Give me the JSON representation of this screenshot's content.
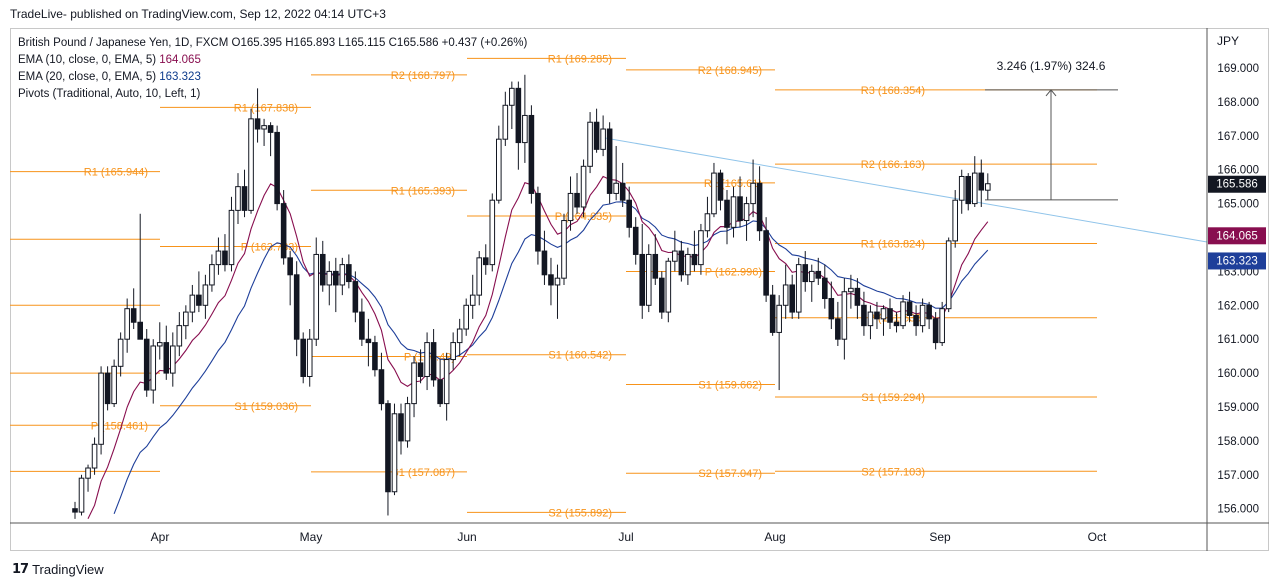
{
  "header": {
    "text": "TradeLive- published on TradingView.com, Sep 12, 2022 04:14 UTC+3"
  },
  "legend": {
    "symbol": "British Pound / Japanese Yen, 1D, FXCM",
    "ohlc": "O165.395 H165.893 L165.115 C165.586 +0.437 (+0.26%)",
    "ema10_label": "EMA (10, close, 0, EMA, 5)",
    "ema10_value": "164.065",
    "ema20_label": "EMA (20, close, 0, EMA, 5)",
    "ema20_value": "163.323",
    "pivots_label": "Pivots (Traditional, Auto, 10, Left, 1)"
  },
  "footer": {
    "brand": "TradingView"
  },
  "colors": {
    "pivot": "#f7931a",
    "ema10": "#880e4f",
    "ema20": "#1e3f9a",
    "trendline": "#90c4ea",
    "candle": "#131722",
    "price_badge": "#131722"
  },
  "chart_data": {
    "type": "candlestick",
    "title": "British Pound / Japanese Yen, 1D, FXCM",
    "currency": "JPY",
    "x_ticks": [
      "Apr",
      "May",
      "Jun",
      "Jul",
      "Aug",
      "Sep",
      "Oct"
    ],
    "y_ticks": [
      "156.000",
      "157.000",
      "158.000",
      "159.000",
      "160.000",
      "161.000",
      "162.000",
      "163.000",
      "164.000",
      "165.000",
      "166.000",
      "167.000",
      "168.000",
      "169.000"
    ],
    "ylim": [
      155.6,
      170.0
    ],
    "last_price": "165.586",
    "ema10_last": "164.065",
    "ema20_last": "163.323",
    "measure_label": "3.246 (1.97%) 324.6",
    "grid": false,
    "pivot_periods": [
      {
        "levels": [
          {
            "label": "",
            "value": 163.95
          },
          {
            "label": "R1 (165.944)",
            "value": 165.944
          },
          {
            "label": "",
            "value": 162.0
          },
          {
            "label": "P (158.461)",
            "value": 158.461
          },
          {
            "label": "",
            "value": 160.0
          },
          {
            "label": "",
            "value": 157.1
          }
        ]
      },
      {
        "levels": [
          {
            "label": "R1 (167.838)",
            "value": 167.838
          },
          {
            "label": "P (163.733)",
            "value": 163.733
          },
          {
            "label": "S1 (159.036)",
            "value": 159.036
          }
        ]
      },
      {
        "levels": [
          {
            "label": "R2 (168.797)",
            "value": 168.797
          },
          {
            "label": "R1 (165.393)",
            "value": 165.393
          },
          {
            "label": "P (160.49)",
            "value": 160.49
          },
          {
            "label": "S1 (157.087)",
            "value": 157.087
          }
        ]
      },
      {
        "levels": [
          {
            "label": "R1 (169.285)",
            "value": 169.285
          },
          {
            "label": "P (164.635)",
            "value": 164.635
          },
          {
            "label": "S1 (160.542)",
            "value": 160.542
          },
          {
            "label": "S2 (155.892)",
            "value": 155.892
          }
        ]
      },
      {
        "levels": [
          {
            "label": "R2 (168.945)",
            "value": 168.945
          },
          {
            "label": "R1 (165.61)",
            "value": 165.61
          },
          {
            "label": "P (162.996)",
            "value": 162.996
          },
          {
            "label": "S1 (159.662)",
            "value": 159.662
          },
          {
            "label": "S2 (157.047)",
            "value": 157.047
          }
        ]
      },
      {
        "levels": [
          {
            "label": "R3 (168.354)",
            "value": 168.354
          },
          {
            "label": "R2 (166.163)",
            "value": 166.163
          },
          {
            "label": "R1 (163.824)",
            "value": 163.824
          },
          {
            "label": "P (161.633)",
            "value": 161.633
          },
          {
            "label": "S1 (159.294)",
            "value": 159.294
          },
          {
            "label": "S2 (157.103)",
            "value": 157.103
          }
        ]
      }
    ],
    "candles": [
      [
        156.0,
        156.2,
        155.7,
        155.9
      ],
      [
        155.9,
        157.0,
        155.8,
        156.9
      ],
      [
        156.9,
        157.3,
        156.5,
        157.2
      ],
      [
        157.2,
        158.1,
        157.0,
        157.9
      ],
      [
        157.9,
        160.2,
        157.6,
        160.0
      ],
      [
        160.0,
        160.2,
        158.9,
        159.1
      ],
      [
        159.1,
        160.4,
        159.0,
        160.2
      ],
      [
        160.2,
        161.2,
        159.9,
        161.0
      ],
      [
        161.0,
        162.2,
        160.6,
        161.9
      ],
      [
        161.9,
        162.5,
        161.3,
        161.5
      ],
      [
        161.5,
        164.7,
        161.0,
        161.0
      ],
      [
        161.0,
        161.3,
        159.3,
        159.5
      ],
      [
        159.5,
        161.0,
        159.1,
        160.8
      ],
      [
        160.8,
        161.5,
        160.4,
        160.9
      ],
      [
        160.9,
        161.4,
        159.8,
        160.0
      ],
      [
        160.0,
        161.2,
        159.6,
        160.8
      ],
      [
        160.8,
        161.8,
        160.5,
        161.4
      ],
      [
        161.4,
        162.0,
        161.0,
        161.8
      ],
      [
        161.8,
        162.6,
        161.5,
        162.3
      ],
      [
        162.3,
        163.0,
        161.8,
        162.0
      ],
      [
        162.0,
        162.9,
        161.6,
        162.6
      ],
      [
        162.6,
        163.5,
        162.4,
        163.2
      ],
      [
        163.2,
        164.0,
        162.9,
        163.6
      ],
      [
        163.6,
        164.1,
        163.0,
        163.2
      ],
      [
        163.2,
        165.2,
        163.0,
        164.8
      ],
      [
        164.8,
        165.9,
        164.4,
        165.5
      ],
      [
        165.5,
        166.0,
        164.6,
        164.8
      ],
      [
        164.8,
        167.8,
        164.7,
        167.5
      ],
      [
        167.5,
        168.4,
        166.8,
        167.2
      ],
      [
        167.2,
        167.5,
        166.7,
        167.3
      ],
      [
        167.3,
        167.4,
        166.4,
        167.1
      ],
      [
        167.1,
        167.3,
        164.8,
        165.0
      ],
      [
        165.0,
        165.4,
        163.2,
        163.4
      ],
      [
        163.4,
        163.6,
        162.0,
        162.9
      ],
      [
        162.9,
        163.3,
        160.5,
        161.0
      ],
      [
        161.0,
        161.2,
        159.7,
        159.9
      ],
      [
        159.9,
        161.3,
        159.6,
        161.0
      ],
      [
        161.0,
        164.0,
        160.8,
        163.5
      ],
      [
        163.5,
        163.9,
        162.4,
        162.6
      ],
      [
        162.6,
        163.3,
        162.0,
        163.0
      ],
      [
        163.0,
        163.4,
        161.8,
        162.6
      ],
      [
        162.6,
        163.4,
        162.3,
        163.2
      ],
      [
        163.2,
        163.5,
        162.5,
        162.7
      ],
      [
        162.7,
        163.0,
        161.5,
        161.8
      ],
      [
        161.8,
        162.2,
        160.8,
        161.0
      ],
      [
        161.0,
        161.6,
        160.2,
        160.9
      ],
      [
        160.9,
        161.1,
        159.9,
        160.1
      ],
      [
        160.1,
        160.6,
        158.9,
        159.1
      ],
      [
        159.1,
        159.2,
        155.8,
        156.5
      ],
      [
        156.5,
        159.1,
        156.4,
        158.8
      ],
      [
        158.8,
        159.1,
        157.6,
        158.0
      ],
      [
        158.0,
        159.3,
        157.8,
        159.1
      ],
      [
        159.1,
        160.5,
        158.7,
        160.3
      ],
      [
        160.3,
        160.7,
        159.7,
        159.9
      ],
      [
        159.9,
        161.2,
        159.5,
        160.9
      ],
      [
        160.9,
        161.3,
        159.6,
        159.8
      ],
      [
        159.8,
        160.4,
        159.0,
        159.1
      ],
      [
        159.1,
        160.6,
        158.6,
        160.4
      ],
      [
        160.4,
        161.2,
        160.1,
        160.9
      ],
      [
        160.9,
        161.6,
        160.5,
        161.3
      ],
      [
        161.3,
        162.2,
        161.1,
        162.0
      ],
      [
        162.0,
        162.9,
        161.6,
        162.3
      ],
      [
        162.3,
        163.6,
        162.0,
        163.4
      ],
      [
        163.4,
        163.8,
        162.9,
        163.2
      ],
      [
        163.2,
        165.3,
        163.0,
        165.1
      ],
      [
        165.1,
        167.3,
        165.0,
        166.9
      ],
      [
        166.9,
        168.3,
        166.7,
        167.9
      ],
      [
        167.9,
        168.6,
        167.2,
        168.4
      ],
      [
        168.4,
        168.6,
        166.0,
        166.8
      ],
      [
        166.8,
        168.8,
        166.2,
        167.6
      ],
      [
        167.6,
        167.9,
        165.0,
        165.3
      ],
      [
        165.3,
        165.5,
        163.2,
        163.6
      ],
      [
        163.6,
        164.2,
        162.6,
        162.9
      ],
      [
        162.9,
        163.4,
        162.0,
        162.6
      ],
      [
        162.6,
        163.2,
        161.6,
        162.8
      ],
      [
        162.8,
        164.7,
        162.6,
        164.5
      ],
      [
        164.5,
        165.8,
        164.2,
        165.3
      ],
      [
        165.3,
        165.9,
        164.7,
        164.9
      ],
      [
        164.9,
        166.3,
        164.6,
        166.1
      ],
      [
        166.1,
        167.7,
        165.9,
        167.4
      ],
      [
        167.4,
        167.8,
        166.5,
        166.6
      ],
      [
        166.6,
        167.6,
        166.4,
        167.2
      ],
      [
        167.2,
        167.4,
        165.0,
        165.3
      ],
      [
        165.3,
        166.7,
        165.1,
        165.6
      ],
      [
        165.6,
        166.2,
        164.9,
        165.1
      ],
      [
        165.1,
        165.5,
        164.0,
        164.3
      ],
      [
        164.3,
        164.6,
        163.2,
        163.5
      ],
      [
        163.5,
        164.4,
        161.6,
        162.0
      ],
      [
        162.0,
        163.8,
        161.8,
        163.5
      ],
      [
        163.5,
        164.1,
        162.6,
        162.8
      ],
      [
        162.8,
        163.0,
        161.6,
        161.8
      ],
      [
        161.8,
        163.4,
        161.5,
        163.3
      ],
      [
        163.3,
        164.2,
        163.0,
        163.6
      ],
      [
        163.6,
        163.9,
        162.7,
        162.9
      ],
      [
        162.9,
        163.7,
        162.6,
        163.5
      ],
      [
        163.5,
        164.2,
        163.0,
        163.2
      ],
      [
        163.2,
        164.4,
        162.9,
        164.2
      ],
      [
        164.2,
        165.2,
        164.0,
        164.7
      ],
      [
        164.7,
        166.2,
        164.6,
        165.9
      ],
      [
        165.9,
        166.0,
        164.8,
        165.1
      ],
      [
        165.1,
        165.4,
        163.8,
        164.3
      ],
      [
        164.3,
        165.5,
        164.0,
        165.2
      ],
      [
        165.2,
        165.8,
        164.3,
        164.5
      ],
      [
        164.5,
        165.2,
        163.9,
        165.0
      ],
      [
        165.0,
        166.3,
        164.6,
        165.6
      ],
      [
        165.6,
        166.1,
        163.9,
        164.2
      ],
      [
        164.2,
        164.6,
        162.1,
        162.3
      ],
      [
        162.3,
        162.6,
        161.1,
        161.2
      ],
      [
        161.2,
        162.3,
        159.5,
        162.0
      ],
      [
        162.0,
        163.2,
        161.6,
        162.6
      ],
      [
        162.6,
        162.9,
        161.6,
        161.8
      ],
      [
        161.8,
        163.4,
        161.6,
        163.2
      ],
      [
        163.2,
        163.6,
        162.4,
        162.7
      ],
      [
        162.7,
        163.2,
        162.1,
        163.0
      ],
      [
        163.0,
        163.4,
        162.6,
        162.8
      ],
      [
        162.8,
        163.2,
        161.9,
        162.2
      ],
      [
        162.2,
        162.7,
        161.3,
        161.6
      ],
      [
        161.6,
        162.1,
        160.8,
        161.0
      ],
      [
        161.0,
        162.8,
        160.4,
        162.4
      ],
      [
        162.4,
        162.9,
        161.9,
        162.5
      ],
      [
        162.5,
        162.8,
        161.6,
        162.0
      ],
      [
        162.0,
        162.4,
        161.1,
        161.4
      ],
      [
        161.4,
        162.0,
        161.0,
        161.8
      ],
      [
        161.8,
        162.1,
        161.3,
        161.6
      ],
      [
        161.6,
        162.0,
        161.1,
        161.9
      ],
      [
        161.9,
        162.2,
        161.3,
        161.5
      ],
      [
        161.5,
        161.8,
        161.2,
        161.4
      ],
      [
        161.4,
        162.3,
        161.3,
        162.1
      ],
      [
        162.1,
        162.4,
        161.5,
        161.7
      ],
      [
        161.7,
        162.0,
        161.1,
        161.4
      ],
      [
        161.4,
        162.2,
        161.2,
        162.0
      ],
      [
        162.0,
        162.1,
        161.3,
        161.6
      ],
      [
        161.6,
        161.8,
        160.7,
        160.9
      ],
      [
        160.9,
        162.1,
        160.8,
        161.9
      ],
      [
        161.9,
        164.0,
        161.8,
        163.9
      ],
      [
        163.9,
        165.4,
        163.7,
        165.1
      ],
      [
        165.1,
        166.0,
        164.7,
        165.8
      ],
      [
        165.8,
        165.9,
        164.8,
        165.0
      ],
      [
        165.0,
        166.4,
        164.9,
        165.9
      ],
      [
        165.9,
        166.3,
        164.9,
        165.4
      ],
      [
        165.395,
        165.893,
        165.115,
        165.586
      ]
    ]
  }
}
